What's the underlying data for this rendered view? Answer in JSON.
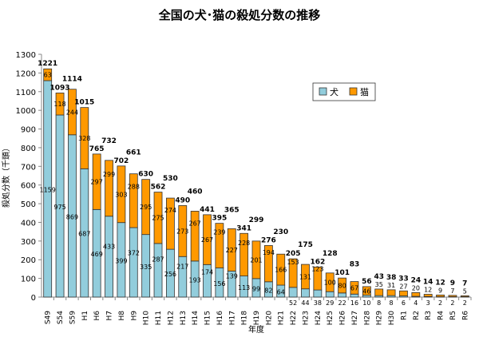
{
  "chart_data": {
    "type": "bar",
    "stacked": true,
    "title": "全国の犬･猫の殺処分数の推移",
    "xlabel": "年度",
    "ylabel": "殺処分数（千頭）",
    "ylim": [
      0,
      1300
    ],
    "yticks": [
      0,
      100,
      200,
      300,
      400,
      500,
      600,
      700,
      800,
      900,
      1000,
      1100,
      1200,
      1300
    ],
    "grid": false,
    "legend": "top-right",
    "categories": [
      "S49",
      "S54",
      "S59",
      "H1",
      "H6",
      "H7",
      "H8",
      "H9",
      "H10",
      "H11",
      "H12",
      "H13",
      "H14",
      "H15",
      "H16",
      "H17",
      "H18",
      "H19",
      "H20",
      "H21",
      "H22",
      "H23",
      "H24",
      "H25",
      "H26",
      "H27",
      "H28",
      "H29",
      "H30",
      "R1",
      "R2",
      "R3",
      "R4",
      "R5",
      "R6"
    ],
    "series": [
      {
        "name": "犬",
        "color": "#92CDDC",
        "values": [
          1159,
          975,
          869,
          687,
          469,
          433,
          399,
          372,
          335,
          287,
          256,
          217,
          193,
          174,
          156,
          139,
          113,
          99,
          82,
          64,
          52,
          44,
          38,
          29,
          22,
          16,
          10,
          8,
          8,
          6,
          4,
          3,
          2,
          2,
          2
        ]
      },
      {
        "name": "猫",
        "color": "#FF9900",
        "values": [
          63,
          118,
          244,
          328,
          297,
          299,
          303,
          288,
          295,
          275,
          274,
          273,
          267,
          267,
          239,
          227,
          228,
          201,
          194,
          166,
          153,
          131,
          123,
          100,
          80,
          67,
          46,
          35,
          31,
          27,
          20,
          12,
          9,
          7,
          5
        ]
      }
    ],
    "totals": [
      1221,
      1093,
      1114,
      1015,
      765,
      732,
      702,
      661,
      630,
      562,
      530,
      490,
      460,
      441,
      395,
      365,
      341,
      299,
      276,
      230,
      205,
      175,
      162,
      128,
      101,
      83,
      56,
      43,
      38,
      33,
      24,
      14,
      12,
      9,
      7
    ]
  }
}
